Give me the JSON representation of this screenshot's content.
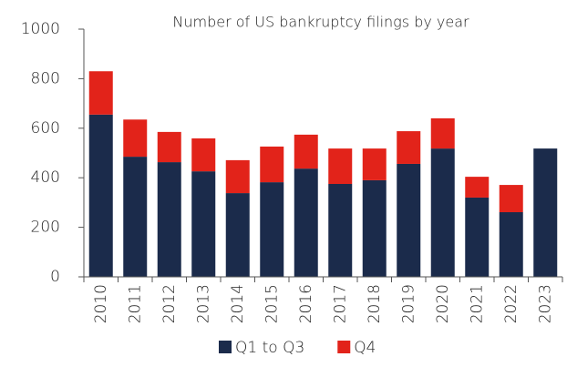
{
  "chart_data": {
    "type": "stacked_bar",
    "title": "Number of US bankruptcy filings by year",
    "categories": [
      "2010",
      "2011",
      "2012",
      "2013",
      "2014",
      "2015",
      "2016",
      "2017",
      "2018",
      "2019",
      "2020",
      "2021",
      "2022",
      "2023"
    ],
    "series": [
      {
        "name": "Q1 to Q3",
        "color": "#1b2b4b",
        "values": [
          655,
          485,
          463,
          426,
          338,
          382,
          437,
          375,
          390,
          456,
          518,
          320,
          261,
          518
        ]
      },
      {
        "name": "Q4",
        "color": "#e2231a",
        "values": [
          175,
          150,
          122,
          133,
          133,
          144,
          137,
          143,
          128,
          132,
          122,
          84,
          110,
          null
        ]
      }
    ],
    "ylim": [
      0,
      1000
    ],
    "yticks": [
      0,
      200,
      400,
      600,
      800,
      1000
    ],
    "legend": "bottom"
  }
}
